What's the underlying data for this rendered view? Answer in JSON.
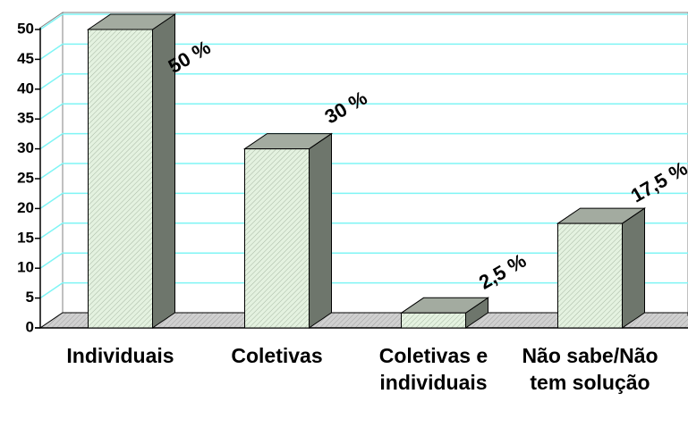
{
  "chart_data": {
    "type": "bar",
    "categories": [
      "Individuais",
      "Coletivas",
      "Coletivas e individuais",
      "Não sabe/Não tem solução"
    ],
    "values": [
      50,
      30,
      2.5,
      17.5
    ],
    "value_labels": [
      "50 %",
      "30 %",
      "2,5 %",
      "17,5 %"
    ],
    "color": "#e4f2e0",
    "ylim": [
      0,
      50
    ],
    "yticks": [
      0,
      5,
      10,
      15,
      20,
      25,
      30,
      35,
      40,
      45,
      50
    ],
    "grid": true
  }
}
